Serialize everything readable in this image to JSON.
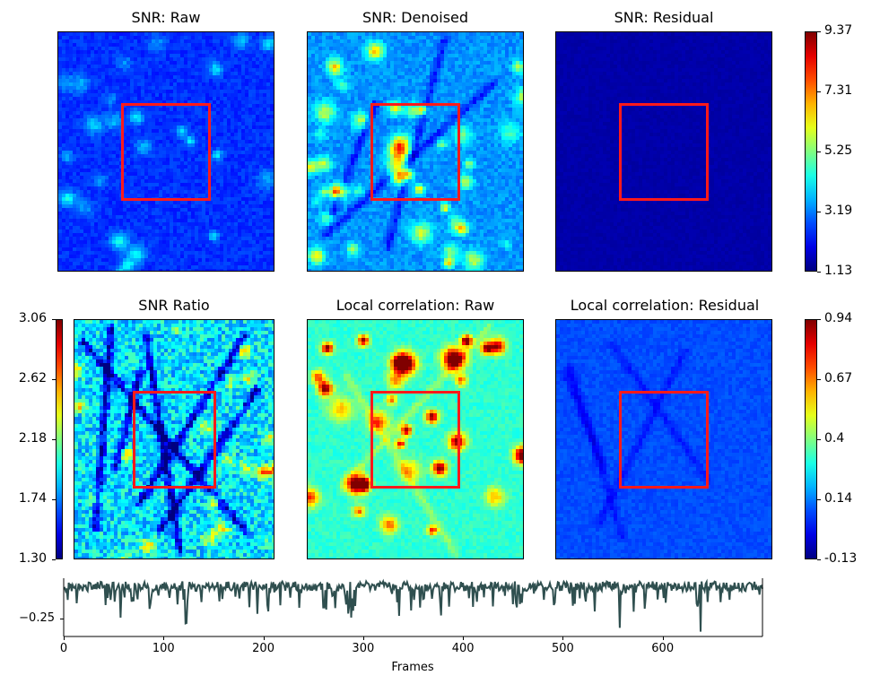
{
  "colors": {
    "roi": "#ff1a1a",
    "trace": "#2f4f4f",
    "colormap": "jet"
  },
  "panels": [
    {
      "id": "snr-raw",
      "title": "SNR: Raw"
    },
    {
      "id": "snr-denoised",
      "title": "SNR: Denoised"
    },
    {
      "id": "snr-residual",
      "title": "SNR: Residual"
    },
    {
      "id": "snr-ratio",
      "title": "SNR Ratio"
    },
    {
      "id": "localcorr-raw",
      "title": "Local correlation: Raw"
    },
    {
      "id": "localcorr-residual",
      "title": "Local correlation: Residual"
    }
  ],
  "colorbars": {
    "snr": {
      "ticks": [
        "9.37",
        "7.31",
        "5.25",
        "3.19",
        "1.13"
      ]
    },
    "ratio": {
      "ticks": [
        "3.06",
        "2.62",
        "2.18",
        "1.74",
        "1.30"
      ]
    },
    "corr": {
      "ticks": [
        "0.94",
        "0.67",
        "0.4",
        "0.14",
        "-0.13"
      ]
    }
  },
  "chart_data": {
    "type": "line",
    "xlabel": "Frames",
    "xlim": [
      0,
      700
    ],
    "ylim": [
      -0.36,
      0
    ],
    "xticks": [
      "0",
      "100",
      "200",
      "300",
      "400",
      "500",
      "600"
    ],
    "yticks": [
      "−0.25"
    ],
    "x_start": 0,
    "x_end": 700,
    "approx_baseline": -0.05,
    "min_value": -0.33,
    "min_at_frame": 638
  }
}
